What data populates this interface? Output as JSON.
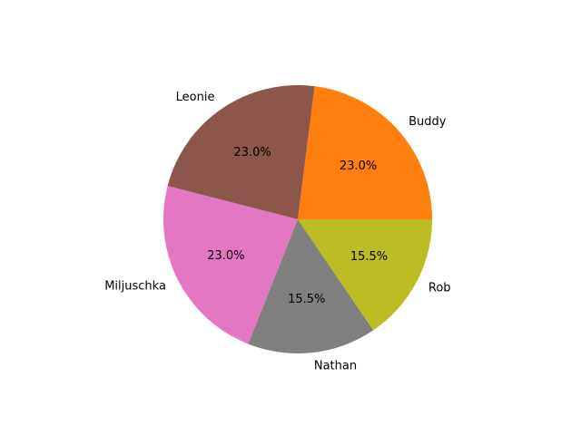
{
  "chart_data": {
    "type": "pie",
    "start_angle_deg": 0,
    "direction": "counterclockwise",
    "categories": [
      "Buddy",
      "Leonie",
      "Miljuschka",
      "Nathan",
      "Rob"
    ],
    "values": [
      23.0,
      23.0,
      23.0,
      15.5,
      15.5
    ],
    "percent_labels": [
      "23.0%",
      "23.0%",
      "23.0%",
      "15.5%",
      "15.5%"
    ],
    "colors": [
      "#ff7f0e",
      "#8c564b",
      "#e377c2",
      "#7f7f7f",
      "#bcbd22"
    ]
  }
}
